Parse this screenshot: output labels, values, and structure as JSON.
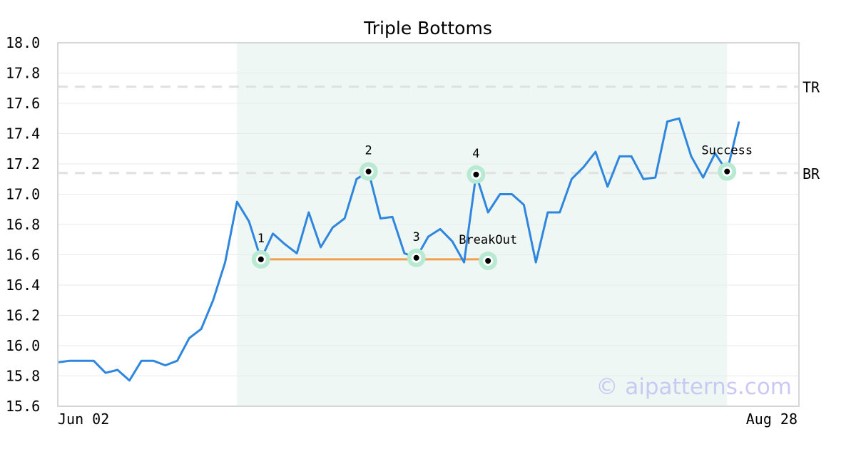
{
  "chart_data": {
    "type": "line",
    "title": "Triple Bottoms",
    "xlabel": "",
    "ylabel": "",
    "ylim": [
      15.6,
      18.0
    ],
    "yticks": [
      "18.0",
      "17.8",
      "17.6",
      "17.4",
      "17.2",
      "17.0",
      "16.8",
      "16.6",
      "16.4",
      "16.2",
      "16.0",
      "15.8",
      "15.6"
    ],
    "x_tick_labels": {
      "first": "Jun 02",
      "last": "Aug 28"
    },
    "grid": "horizontal",
    "series": [
      {
        "values": [
          15.89,
          15.9,
          15.9,
          15.9,
          15.82,
          15.84,
          15.77,
          15.9,
          15.9,
          15.87,
          15.9,
          16.05,
          16.11,
          16.3,
          16.55,
          16.95,
          16.82,
          16.57,
          16.74,
          16.67,
          16.61,
          16.88,
          16.65,
          16.78,
          16.84,
          17.1,
          17.15,
          16.84,
          16.85,
          16.61,
          16.58,
          16.72,
          16.77,
          16.69,
          16.55,
          17.13,
          16.88,
          17.0,
          17.0,
          16.93,
          16.55,
          16.88,
          16.88,
          17.1,
          17.18,
          17.28,
          17.05,
          17.25,
          17.25,
          17.1,
          17.11,
          17.48,
          17.5,
          17.25,
          17.11,
          17.27,
          17.15,
          17.48
        ],
        "color": "#2e86de"
      }
    ],
    "reference_lines": [
      {
        "label": "TR",
        "value": 17.71,
        "style": "dashed",
        "color": "#e0e0e0"
      },
      {
        "label": "BR",
        "value": 17.14,
        "style": "dashed",
        "color": "#e0e0e0"
      }
    ],
    "pattern_region": {
      "start_index": 15,
      "end_index": 56,
      "color": "#eef7f3"
    },
    "support_line": {
      "start_index": 17,
      "end_index": 36,
      "value": 16.57,
      "color": "#f0a04b"
    },
    "markers": [
      {
        "label": "1",
        "index": 17,
        "value": 16.57
      },
      {
        "label": "2",
        "index": 26,
        "value": 17.15
      },
      {
        "label": "3",
        "index": 30,
        "value": 16.58
      },
      {
        "label": "4",
        "index": 35,
        "value": 17.13
      },
      {
        "label": "BreakOut",
        "index": 36,
        "value": 16.56
      },
      {
        "label": "Success",
        "index": 56,
        "value": 17.15
      }
    ],
    "watermark": "© aipatterns.com"
  }
}
